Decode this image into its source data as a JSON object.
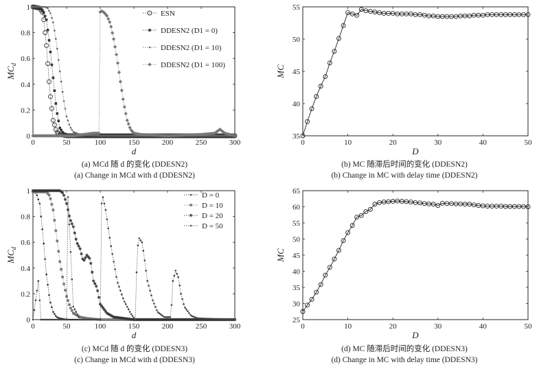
{
  "captions": {
    "a_cn": "(a) MCd 随 d 的变化 (DDESN2)",
    "a_en": "(a) Change in MCd with d (DDESN2)",
    "b_cn": "(b) MC 随滞后时间的变化 (DDESN2)",
    "b_en": "(b) Change in MC with delay time (DDESN2)",
    "c_cn": "(c) MCd 随 d 的变化 (DDESN3)",
    "c_en": "(c) Change in MCd with d (DDESN3)",
    "d_cn": "(d) MC 随滞后时间的变化 (DDESN3)",
    "d_en": "(d) Change in MC with delay time (DDESN3)"
  },
  "chart_data": [
    {
      "id": "a",
      "type": "line",
      "xlabel": "d",
      "ylabel": "MCd",
      "xlim": [
        0,
        300
      ],
      "ylim": [
        0,
        1
      ],
      "xticks": [
        "0",
        "50",
        "100",
        "150",
        "200",
        "250",
        "300"
      ],
      "yticks": [
        "0",
        "0.2",
        "0.4",
        "0.6",
        "0.8",
        "1"
      ],
      "legend_position": "top-right",
      "series": [
        {
          "name": "ESN",
          "marker": "open-circle",
          "color": "#333333",
          "x": [
            0,
            10,
            15,
            20,
            25,
            30,
            35,
            40,
            50,
            100,
            200,
            300
          ],
          "values": [
            1.0,
            0.99,
            0.95,
            0.7,
            0.35,
            0.12,
            0.03,
            0.01,
            0.0,
            0.0,
            0.0,
            0.0
          ]
        },
        {
          "name": "DDESN2 (D1 = 0)",
          "marker": "square",
          "color": "#333333",
          "x": [
            0,
            10,
            15,
            20,
            25,
            30,
            35,
            40,
            45,
            50,
            100,
            200,
            300
          ],
          "values": [
            1.0,
            0.99,
            0.97,
            0.9,
            0.7,
            0.45,
            0.2,
            0.06,
            0.02,
            0.01,
            0.0,
            0.0,
            0.0
          ]
        },
        {
          "name": "DDESN2 (D1 = 10)",
          "marker": "dot",
          "color": "#666666",
          "x": [
            0,
            18,
            22,
            26,
            30,
            35,
            40,
            45,
            50,
            55,
            60,
            70,
            100,
            200,
            300
          ],
          "values": [
            1.0,
            1.0,
            0.99,
            0.95,
            0.88,
            0.72,
            0.5,
            0.3,
            0.15,
            0.07,
            0.03,
            0.01,
            0.0,
            0.0,
            0.0
          ]
        },
        {
          "name": "DDESN2 (D1 = 100)",
          "marker": "diamond",
          "color": "#777777",
          "x": [
            0,
            60,
            90,
            99,
            100,
            101,
            105,
            110,
            115,
            120,
            125,
            130,
            135,
            140,
            145,
            150,
            160,
            200,
            250,
            270,
            278,
            285,
            300
          ],
          "values": [
            0.0,
            0.0,
            0.02,
            0.02,
            0.96,
            0.97,
            0.96,
            0.93,
            0.87,
            0.75,
            0.6,
            0.42,
            0.25,
            0.12,
            0.05,
            0.02,
            0.01,
            0.0,
            0.01,
            0.02,
            0.05,
            0.02,
            0.0
          ]
        }
      ]
    },
    {
      "id": "b",
      "type": "line",
      "xlabel": "D",
      "ylabel": "MC",
      "xlim": [
        0,
        50
      ],
      "ylim": [
        35,
        55
      ],
      "xticks": [
        "0",
        "10",
        "20",
        "30",
        "40",
        "50"
      ],
      "yticks": [
        "35",
        "40",
        "45",
        "50",
        "55"
      ],
      "series": [
        {
          "marker": "open-circle",
          "color": "#222222",
          "x": [
            0,
            1,
            2,
            3,
            4,
            5,
            6,
            7,
            8,
            9,
            10,
            11,
            12,
            13,
            14,
            15,
            16,
            17,
            18,
            19,
            20,
            21,
            22,
            23,
            24,
            25,
            26,
            27,
            28,
            29,
            30,
            31,
            32,
            33,
            34,
            35,
            36,
            37,
            38,
            39,
            40,
            41,
            42,
            43,
            44,
            45,
            46,
            47,
            48,
            49,
            50
          ],
          "values": [
            35.0,
            37.2,
            39.2,
            41.1,
            42.7,
            44.2,
            46.3,
            48.1,
            50.1,
            52.1,
            54.1,
            53.9,
            53.7,
            54.6,
            54.4,
            54.3,
            54.2,
            54.1,
            54.0,
            54.0,
            54.0,
            53.9,
            53.9,
            53.9,
            53.9,
            53.8,
            53.8,
            53.7,
            53.6,
            53.6,
            53.5,
            53.5,
            53.5,
            53.5,
            53.5,
            53.6,
            53.6,
            53.6,
            53.7,
            53.7,
            53.7,
            53.8,
            53.8,
            53.8,
            53.8,
            53.8,
            53.8,
            53.8,
            53.8,
            53.8,
            53.8
          ]
        }
      ]
    },
    {
      "id": "c",
      "type": "line",
      "xlabel": "d",
      "ylabel": "MCd",
      "xlim": [
        0,
        300
      ],
      "ylim": [
        0,
        1
      ],
      "xticks": [
        "0",
        "50",
        "100",
        "150",
        "200",
        "250",
        "300"
      ],
      "yticks": [
        "0",
        "0.2",
        "0.4",
        "0.6",
        "0.8",
        "1"
      ],
      "legend_position": "top-right",
      "series": [
        {
          "name": "D = 0",
          "marker": "dot",
          "color": "#333333",
          "x": [
            0,
            5,
            10,
            15,
            20,
            25,
            30,
            35,
            40,
            50,
            100,
            300
          ],
          "values": [
            1.0,
            0.98,
            0.9,
            0.65,
            0.35,
            0.15,
            0.06,
            0.02,
            0.01,
            0.0,
            0.0,
            0.0
          ]
        },
        {
          "name": "D = 10",
          "marker": "square",
          "color": "#777777",
          "x": [
            0,
            20,
            25,
            30,
            35,
            40,
            45,
            50,
            55,
            60,
            70,
            80,
            100,
            300
          ],
          "values": [
            0.99,
            0.99,
            0.96,
            0.85,
            0.65,
            0.45,
            0.3,
            0.18,
            0.1,
            0.05,
            0.02,
            0.01,
            0.0,
            0.0
          ]
        },
        {
          "name": "D = 20",
          "marker": "star",
          "color": "#333333",
          "x": [
            0,
            40,
            45,
            50,
            55,
            60,
            65,
            70,
            75,
            80,
            85,
            90,
            95,
            100,
            110,
            120,
            150,
            300
          ],
          "values": [
            1.0,
            1.0,
            0.98,
            0.9,
            0.78,
            0.72,
            0.6,
            0.55,
            0.45,
            0.5,
            0.47,
            0.3,
            0.25,
            0.12,
            0.05,
            0.02,
            0.0,
            0.0
          ]
        },
        {
          "name": "D = 50",
          "marker": "dot",
          "color": "#444444",
          "x": [
            0,
            8,
            12,
            50,
            52,
            60,
            70,
            100,
            102,
            104,
            108,
            115,
            125,
            135,
            145,
            152,
            155,
            158,
            162,
            165,
            170,
            178,
            185,
            195,
            205,
            208,
            212,
            216,
            220,
            225,
            235,
            245,
            300
          ],
          "values": [
            0.0,
            0.3,
            0.0,
            0.0,
            0.95,
            0.1,
            0.0,
            0.0,
            0.9,
            0.95,
            0.85,
            0.6,
            0.3,
            0.15,
            0.05,
            0.0,
            0.55,
            0.63,
            0.6,
            0.5,
            0.3,
            0.15,
            0.06,
            0.02,
            0.02,
            0.3,
            0.38,
            0.33,
            0.2,
            0.1,
            0.03,
            0.01,
            0.0
          ]
        }
      ]
    },
    {
      "id": "d",
      "type": "line",
      "xlabel": "D",
      "ylabel": "MC",
      "xlim": [
        0,
        50
      ],
      "ylim": [
        25,
        65
      ],
      "xticks": [
        "0",
        "10",
        "20",
        "30",
        "40",
        "50"
      ],
      "yticks": [
        "25",
        "30",
        "35",
        "40",
        "45",
        "50",
        "55",
        "60",
        "65"
      ],
      "series": [
        {
          "marker": "open-circle",
          "color": "#222222",
          "x": [
            0,
            1,
            2,
            3,
            4,
            5,
            6,
            7,
            8,
            9,
            10,
            11,
            12,
            13,
            14,
            15,
            16,
            17,
            18,
            19,
            20,
            21,
            22,
            23,
            24,
            25,
            26,
            27,
            28,
            29,
            30,
            31,
            32,
            33,
            34,
            35,
            36,
            37,
            38,
            39,
            40,
            41,
            42,
            43,
            44,
            45,
            46,
            47,
            48,
            49,
            50
          ],
          "values": [
            27.5,
            29.5,
            31.3,
            33.5,
            35.9,
            38.8,
            41.2,
            43.8,
            46.5,
            49.5,
            52.0,
            54.2,
            56.8,
            57.3,
            58.5,
            59.2,
            60.8,
            61.3,
            61.5,
            61.6,
            61.7,
            61.8,
            61.7,
            61.6,
            61.5,
            61.3,
            61.2,
            61.0,
            60.9,
            60.8,
            60.4,
            61.1,
            61.0,
            61.0,
            60.9,
            60.9,
            60.8,
            60.8,
            60.6,
            60.4,
            60.3,
            60.2,
            60.2,
            60.2,
            60.2,
            60.1,
            60.1,
            60.1,
            60.1,
            60.1,
            60.0
          ]
        }
      ]
    }
  ]
}
